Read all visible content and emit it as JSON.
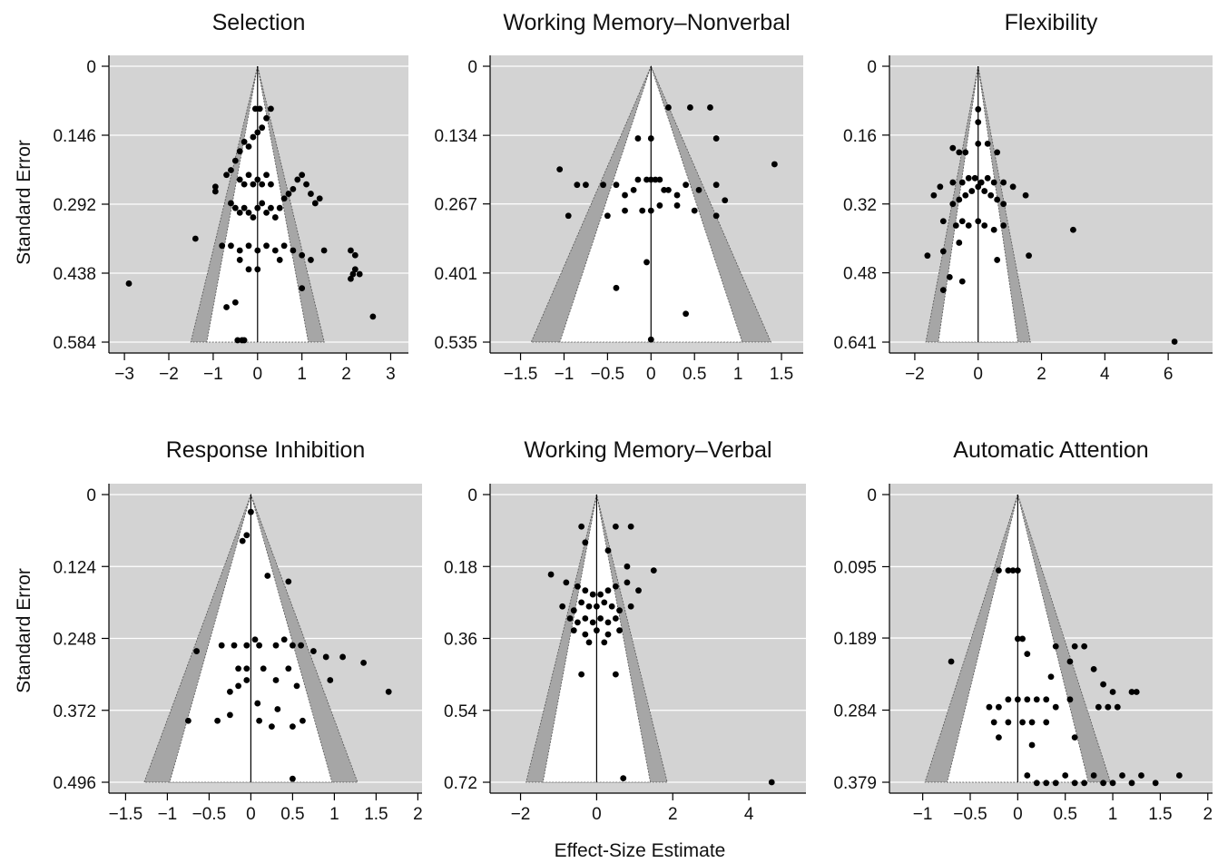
{
  "figure": {
    "ylabel": "Standard Error",
    "xlabel": "Effect-Size Estimate"
  },
  "colors": {
    "plot_background": "#d3d3d3",
    "funnel_band": "#a6a6a6",
    "funnel_inner": "#ffffff",
    "points": "#000000",
    "gridlines": "#ffffff"
  },
  "chart_data": [
    {
      "type": "scatter",
      "title": "Selection",
      "xlim": [
        -3.35,
        3.4
      ],
      "xticks": [
        -3,
        -2,
        -1,
        0,
        1,
        2,
        3
      ],
      "xtick_labels": [
        "−3",
        "−2",
        "−1",
        "0",
        "1",
        "2",
        "3"
      ],
      "ylim": [
        0.584,
        0
      ],
      "yticks": [
        0,
        0.146,
        0.292,
        0.438,
        0.584
      ],
      "ytick_labels": [
        "0",
        "0.146",
        "0.292",
        "0.438",
        "0.584"
      ],
      "points": [
        [
          -2.9,
          0.46
        ],
        [
          -1.4,
          0.365
        ],
        [
          -0.95,
          0.255
        ],
        [
          -0.95,
          0.265
        ],
        [
          -0.7,
          0.23
        ],
        [
          -0.6,
          0.22
        ],
        [
          -0.5,
          0.2
        ],
        [
          -0.4,
          0.18
        ],
        [
          -0.3,
          0.16
        ],
        [
          -0.2,
          0.17
        ],
        [
          -0.1,
          0.15
        ],
        [
          0,
          0.14
        ],
        [
          0.1,
          0.13
        ],
        [
          0.2,
          0.11
        ],
        [
          0.3,
          0.09
        ],
        [
          -0.05,
          0.09
        ],
        [
          0.05,
          0.09
        ],
        [
          -0.6,
          0.29
        ],
        [
          -0.5,
          0.3
        ],
        [
          -0.4,
          0.31
        ],
        [
          -0.3,
          0.3
        ],
        [
          -0.2,
          0.31
        ],
        [
          -0.1,
          0.32
        ],
        [
          0,
          0.3
        ],
        [
          0.1,
          0.29
        ],
        [
          0.2,
          0.31
        ],
        [
          0.3,
          0.3
        ],
        [
          0.4,
          0.32
        ],
        [
          0.5,
          0.3
        ],
        [
          0.6,
          0.28
        ],
        [
          0.7,
          0.27
        ],
        [
          0.8,
          0.26
        ],
        [
          0.9,
          0.24
        ],
        [
          1.0,
          0.23
        ],
        [
          1.1,
          0.25
        ],
        [
          1.2,
          0.27
        ],
        [
          1.3,
          0.29
        ],
        [
          1.4,
          0.28
        ],
        [
          -0.4,
          0.24
        ],
        [
          -0.3,
          0.25
        ],
        [
          -0.2,
          0.23
        ],
        [
          -0.1,
          0.25
        ],
        [
          0,
          0.24
        ],
        [
          0.1,
          0.25
        ],
        [
          0.2,
          0.23
        ],
        [
          0.3,
          0.25
        ],
        [
          -0.8,
          0.38
        ],
        [
          -0.6,
          0.38
        ],
        [
          -0.4,
          0.39
        ],
        [
          -0.2,
          0.38
        ],
        [
          0,
          0.39
        ],
        [
          0.2,
          0.38
        ],
        [
          0.4,
          0.39
        ],
        [
          0.6,
          0.38
        ],
        [
          0.8,
          0.39
        ],
        [
          1.0,
          0.4
        ],
        [
          1.2,
          0.41
        ],
        [
          1.5,
          0.39
        ],
        [
          2.1,
          0.39
        ],
        [
          2.2,
          0.4
        ],
        [
          -0.4,
          0.41
        ],
        [
          -0.2,
          0.43
        ],
        [
          0,
          0.43
        ],
        [
          0.5,
          0.41
        ],
        [
          1.0,
          0.47
        ],
        [
          2.1,
          0.45
        ],
        [
          2.15,
          0.44
        ],
        [
          2.2,
          0.43
        ],
        [
          2.3,
          0.44
        ],
        [
          2.6,
          0.53
        ],
        [
          -0.7,
          0.51
        ],
        [
          -0.5,
          0.5
        ],
        [
          -0.45,
          0.58
        ],
        [
          -0.3,
          0.58
        ],
        [
          -0.35,
          0.58
        ]
      ],
      "funnel_outer": 2.576,
      "funnel_inner": 1.96
    },
    {
      "type": "scatter",
      "title": "Working Memory–Nonverbal",
      "xlim": [
        -1.85,
        1.75
      ],
      "xticks": [
        -1.5,
        -1,
        -0.5,
        0,
        0.5,
        1,
        1.5
      ],
      "xtick_labels": [
        "−1.5",
        "−1",
        "−0.5",
        "0",
        "0.5",
        "1",
        "1.5"
      ],
      "ylim": [
        0.535,
        0
      ],
      "yticks": [
        0,
        0.134,
        0.267,
        0.401,
        0.535
      ],
      "ytick_labels": [
        "0",
        "0.134",
        "0.267",
        "0.401",
        "0.535"
      ],
      "points": [
        [
          0.2,
          0.08
        ],
        [
          0.45,
          0.08
        ],
        [
          0.68,
          0.08
        ],
        [
          0.75,
          0.14
        ],
        [
          1.42,
          0.19
        ],
        [
          -1.05,
          0.2
        ],
        [
          -0.85,
          0.23
        ],
        [
          -0.75,
          0.23
        ],
        [
          -0.55,
          0.23
        ],
        [
          -0.4,
          0.23
        ],
        [
          -0.3,
          0.25
        ],
        [
          -0.2,
          0.24
        ],
        [
          -0.15,
          0.22
        ],
        [
          -0.05,
          0.22
        ],
        [
          0,
          0.22
        ],
        [
          0.05,
          0.22
        ],
        [
          0.1,
          0.22
        ],
        [
          0.15,
          0.24
        ],
        [
          0.2,
          0.24
        ],
        [
          0.3,
          0.25
        ],
        [
          0.4,
          0.23
        ],
        [
          0.55,
          0.24
        ],
        [
          0.75,
          0.23
        ],
        [
          0.85,
          0.26
        ],
        [
          -0.95,
          0.29
        ],
        [
          -0.5,
          0.29
        ],
        [
          -0.3,
          0.28
        ],
        [
          -0.1,
          0.28
        ],
        [
          0,
          0.28
        ],
        [
          0.1,
          0.27
        ],
        [
          0.3,
          0.27
        ],
        [
          0.5,
          0.28
        ],
        [
          0.75,
          0.29
        ],
        [
          -0.15,
          0.14
        ],
        [
          0,
          0.14
        ],
        [
          -0.05,
          0.38
        ],
        [
          -0.4,
          0.43
        ],
        [
          0.4,
          0.48
        ],
        [
          0,
          0.53
        ]
      ],
      "funnel_outer": 2.576,
      "funnel_inner": 1.96
    },
    {
      "type": "scatter",
      "title": "Flexibility",
      "xlim": [
        -2.8,
        7.4
      ],
      "xticks": [
        -2,
        0,
        2,
        4,
        6
      ],
      "xtick_labels": [
        "−2",
        "0",
        "2",
        "4",
        "6"
      ],
      "ylim": [
        0.641,
        0
      ],
      "yticks": [
        0,
        0.16,
        0.32,
        0.48,
        0.641
      ],
      "ytick_labels": [
        "0",
        "0.16",
        "0.32",
        "0.48",
        "0.641"
      ],
      "points": [
        [
          0,
          0.1
        ],
        [
          0,
          0.13
        ],
        [
          0,
          0.18
        ],
        [
          -0.8,
          0.19
        ],
        [
          -0.6,
          0.2
        ],
        [
          -0.4,
          0.2
        ],
        [
          0.3,
          0.18
        ],
        [
          0.6,
          0.2
        ],
        [
          -1.4,
          0.3
        ],
        [
          -1.2,
          0.28
        ],
        [
          -0.8,
          0.27
        ],
        [
          -0.5,
          0.27
        ],
        [
          -0.3,
          0.26
        ],
        [
          -0.1,
          0.26
        ],
        [
          0.1,
          0.27
        ],
        [
          0.3,
          0.26
        ],
        [
          0.5,
          0.27
        ],
        [
          0.8,
          0.27
        ],
        [
          1.1,
          0.28
        ],
        [
          1.5,
          0.3
        ],
        [
          -0.8,
          0.32
        ],
        [
          -0.6,
          0.31
        ],
        [
          -0.4,
          0.3
        ],
        [
          -0.2,
          0.29
        ],
        [
          0,
          0.28
        ],
        [
          0.2,
          0.29
        ],
        [
          0.4,
          0.3
        ],
        [
          0.6,
          0.31
        ],
        [
          0.8,
          0.32
        ],
        [
          -1.1,
          0.36
        ],
        [
          -0.7,
          0.37
        ],
        [
          -0.5,
          0.36
        ],
        [
          -0.3,
          0.37
        ],
        [
          0,
          0.36
        ],
        [
          0.2,
          0.37
        ],
        [
          0.5,
          0.38
        ],
        [
          0.8,
          0.37
        ],
        [
          -1.6,
          0.44
        ],
        [
          -1.1,
          0.43
        ],
        [
          -0.6,
          0.41
        ],
        [
          0.6,
          0.45
        ],
        [
          1.6,
          0.44
        ],
        [
          3,
          0.38
        ],
        [
          -1.1,
          0.52
        ],
        [
          -0.9,
          0.49
        ],
        [
          -0.5,
          0.5
        ],
        [
          6.2,
          0.64
        ]
      ],
      "funnel_outer": 2.576,
      "funnel_inner": 1.96
    },
    {
      "type": "scatter",
      "title": "Response Inhibition",
      "xlim": [
        -1.7,
        2.05
      ],
      "xticks": [
        -1.5,
        -1,
        -0.5,
        0,
        0.5,
        1,
        1.5,
        2
      ],
      "xtick_labels": [
        "−1.5",
        "−1",
        "−0.5",
        "0",
        "0.5",
        "1",
        "1.5",
        "2"
      ],
      "ylim": [
        0.496,
        0
      ],
      "yticks": [
        0,
        0.124,
        0.248,
        0.372,
        0.496
      ],
      "ytick_labels": [
        "0",
        "0.124",
        "0.248",
        "0.372",
        "0.496"
      ],
      "points": [
        [
          0,
          0.03
        ],
        [
          -0.1,
          0.08
        ],
        [
          -0.05,
          0.07
        ],
        [
          0.2,
          0.14
        ],
        [
          0.45,
          0.15
        ],
        [
          -0.65,
          0.27
        ],
        [
          -0.35,
          0.26
        ],
        [
          -0.2,
          0.26
        ],
        [
          -0.05,
          0.26
        ],
        [
          0.05,
          0.25
        ],
        [
          0.1,
          0.26
        ],
        [
          0.3,
          0.26
        ],
        [
          0.4,
          0.25
        ],
        [
          0.5,
          0.26
        ],
        [
          0.6,
          0.26
        ],
        [
          0.75,
          0.27
        ],
        [
          0.9,
          0.28
        ],
        [
          1.1,
          0.28
        ],
        [
          1.35,
          0.29
        ],
        [
          0.15,
          0.3
        ],
        [
          0.45,
          0.3
        ],
        [
          -0.15,
          0.3
        ],
        [
          -0.05,
          0.3
        ],
        [
          -0.15,
          0.33
        ],
        [
          0.3,
          0.32
        ],
        [
          0.55,
          0.33
        ],
        [
          0.95,
          0.32
        ],
        [
          -0.25,
          0.34
        ],
        [
          -0.05,
          0.32
        ],
        [
          1.65,
          0.34
        ],
        [
          -0.75,
          0.39
        ],
        [
          -0.4,
          0.39
        ],
        [
          -0.25,
          0.38
        ],
        [
          0.1,
          0.39
        ],
        [
          0.25,
          0.4
        ],
        [
          0.5,
          0.4
        ],
        [
          0.62,
          0.39
        ],
        [
          0.08,
          0.36
        ],
        [
          0.32,
          0.37
        ],
        [
          0.5,
          0.49
        ]
      ],
      "funnel_outer": 2.576,
      "funnel_inner": 1.96
    },
    {
      "type": "scatter",
      "title": "Working Memory–Verbal",
      "xlim": [
        -2.8,
        5.5
      ],
      "xticks": [
        -2,
        0,
        2,
        4
      ],
      "xtick_labels": [
        "−2",
        "0",
        "2",
        "4"
      ],
      "ylim": [
        0.72,
        0
      ],
      "yticks": [
        0,
        0.18,
        0.36,
        0.54,
        0.72
      ],
      "ytick_labels": [
        "0",
        "0.18",
        "0.36",
        "0.54",
        "0.72"
      ],
      "points": [
        [
          -0.4,
          0.08
        ],
        [
          0.5,
          0.08
        ],
        [
          0.9,
          0.08
        ],
        [
          -0.3,
          0.12
        ],
        [
          0.3,
          0.14
        ],
        [
          0.8,
          0.18
        ],
        [
          1.5,
          0.19
        ],
        [
          -1.2,
          0.2
        ],
        [
          -0.8,
          0.22
        ],
        [
          -0.5,
          0.23
        ],
        [
          -0.3,
          0.24
        ],
        [
          -0.1,
          0.25
        ],
        [
          0.1,
          0.25
        ],
        [
          0.3,
          0.24
        ],
        [
          0.5,
          0.23
        ],
        [
          0.8,
          0.22
        ],
        [
          1.1,
          0.24
        ],
        [
          -0.9,
          0.28
        ],
        [
          -0.6,
          0.29
        ],
        [
          -0.4,
          0.27
        ],
        [
          -0.2,
          0.28
        ],
        [
          0,
          0.28
        ],
        [
          0.2,
          0.27
        ],
        [
          0.4,
          0.28
        ],
        [
          0.6,
          0.29
        ],
        [
          0.9,
          0.28
        ],
        [
          -0.7,
          0.31
        ],
        [
          -0.5,
          0.32
        ],
        [
          -0.3,
          0.31
        ],
        [
          -0.1,
          0.32
        ],
        [
          0.1,
          0.31
        ],
        [
          0.3,
          0.32
        ],
        [
          0.5,
          0.31
        ],
        [
          -0.6,
          0.34
        ],
        [
          -0.3,
          0.35
        ],
        [
          0,
          0.34
        ],
        [
          0.3,
          0.35
        ],
        [
          0.6,
          0.34
        ],
        [
          -0.2,
          0.37
        ],
        [
          0.2,
          0.37
        ],
        [
          -0.4,
          0.45
        ],
        [
          0.5,
          0.45
        ],
        [
          0.7,
          0.71
        ],
        [
          4.6,
          0.72
        ]
      ],
      "funnel_outer": 2.576,
      "funnel_inner": 1.96
    },
    {
      "type": "scatter",
      "title": "Automatic Attention",
      "xlim": [
        -1.35,
        2.05
      ],
      "xticks": [
        -1,
        -0.5,
        0,
        0.5,
        1,
        1.5,
        2
      ],
      "xtick_labels": [
        "−1",
        "−0.5",
        "0",
        "0.5",
        "1",
        "1.5",
        "2"
      ],
      "ylim": [
        0.379,
        0
      ],
      "yticks": [
        0,
        0.095,
        0.189,
        0.284,
        0.379
      ],
      "ytick_labels": [
        "0",
        "0.095",
        "0.189",
        "0.284",
        "0.379"
      ],
      "points": [
        [
          -0.2,
          0.1
        ],
        [
          -0.1,
          0.1
        ],
        [
          -0.05,
          0.1
        ],
        [
          0,
          0.1
        ],
        [
          -0.7,
          0.22
        ],
        [
          0,
          0.19
        ],
        [
          0.05,
          0.19
        ],
        [
          0.4,
          0.2
        ],
        [
          0.6,
          0.2
        ],
        [
          0.7,
          0.2
        ],
        [
          0.1,
          0.21
        ],
        [
          0.55,
          0.22
        ],
        [
          0.8,
          0.23
        ],
        [
          0.9,
          0.25
        ],
        [
          1.0,
          0.26
        ],
        [
          1.2,
          0.26
        ],
        [
          1.25,
          0.26
        ],
        [
          0.35,
          0.24
        ],
        [
          -0.3,
          0.28
        ],
        [
          -0.2,
          0.28
        ],
        [
          -0.1,
          0.27
        ],
        [
          0,
          0.27
        ],
        [
          0.1,
          0.27
        ],
        [
          0.2,
          0.27
        ],
        [
          0.3,
          0.27
        ],
        [
          0.4,
          0.28
        ],
        [
          0.55,
          0.27
        ],
        [
          0.85,
          0.28
        ],
        [
          0.95,
          0.28
        ],
        [
          1.05,
          0.28
        ],
        [
          -0.25,
          0.3
        ],
        [
          -0.1,
          0.3
        ],
        [
          0.05,
          0.3
        ],
        [
          0.15,
          0.3
        ],
        [
          0.3,
          0.3
        ],
        [
          -0.2,
          0.32
        ],
        [
          0.15,
          0.33
        ],
        [
          0.6,
          0.32
        ],
        [
          0.1,
          0.37
        ],
        [
          0.2,
          0.38
        ],
        [
          0.3,
          0.38
        ],
        [
          0.4,
          0.38
        ],
        [
          0.5,
          0.37
        ],
        [
          0.6,
          0.38
        ],
        [
          0.7,
          0.38
        ],
        [
          0.8,
          0.37
        ],
        [
          0.9,
          0.38
        ],
        [
          1.0,
          0.38
        ],
        [
          1.1,
          0.37
        ],
        [
          1.2,
          0.38
        ],
        [
          1.3,
          0.37
        ],
        [
          1.45,
          0.38
        ],
        [
          1.7,
          0.37
        ]
      ],
      "funnel_outer": 2.576,
      "funnel_inner": 1.96
    }
  ]
}
